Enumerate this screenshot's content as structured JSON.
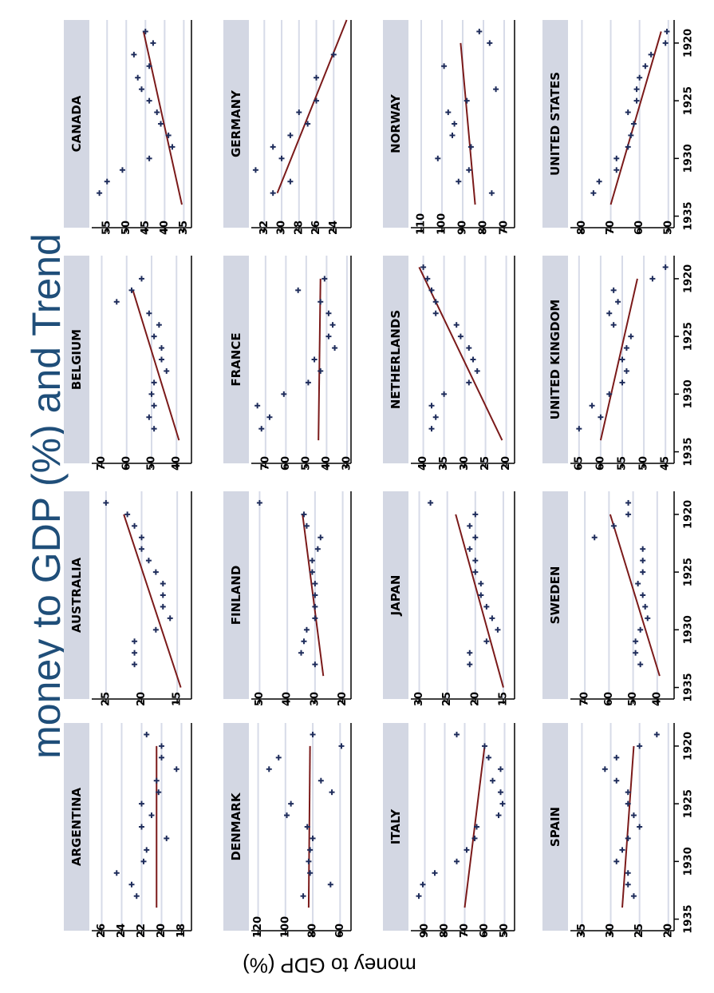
{
  "figure": {
    "title": "money to GDP (%) and Trend",
    "ylabel": "money to GDP (%)",
    "colors": {
      "points": "#1f2d5c",
      "trend": "#7b1a1a",
      "strip": "#d3d7e3",
      "grid": "#d7dbe8"
    }
  },
  "chart_data": [
    {
      "type": "scatter",
      "title": "CANADA",
      "x": [
        1919,
        1920,
        1921,
        1922,
        1923,
        1924,
        1925,
        1926,
        1927,
        1928,
        1929,
        1930,
        1931,
        1932,
        1933
      ],
      "y": [
        45,
        43,
        48,
        44,
        47,
        46,
        44,
        42,
        41,
        39,
        38,
        44,
        51,
        55,
        57
      ],
      "trend": {
        "x": [
          1919,
          1934
        ],
        "y": [
          45.5,
          35.5
        ]
      },
      "xlim": [
        1918,
        1936
      ],
      "ylim": [
        33,
        59
      ],
      "yticks": [
        55,
        50,
        45,
        40,
        35
      ],
      "xticks": []
    },
    {
      "type": "scatter",
      "title": "GERMANY",
      "x": [
        1921,
        1923,
        1925,
        1926,
        1927,
        1928,
        1929,
        1930,
        1931,
        1932,
        1933
      ],
      "y": [
        24,
        26,
        26,
        28,
        27,
        29,
        31,
        30,
        33,
        29,
        31
      ],
      "trend": {
        "x": [
          1918,
          1933
        ],
        "y": [
          22.5,
          30.5
        ]
      },
      "xlim": [
        1918,
        1936
      ],
      "ylim": [
        22,
        33.5
      ],
      "yticks": [
        32,
        30,
        28,
        26,
        24
      ],
      "xticks": []
    },
    {
      "type": "scatter",
      "title": "NORWAY",
      "x": [
        1919,
        1920,
        1922,
        1924,
        1925,
        1926,
        1927,
        1928,
        1929,
        1930,
        1931,
        1932,
        1933
      ],
      "y": [
        82,
        77,
        99,
        74,
        88,
        97,
        94,
        95,
        86,
        102,
        87,
        92,
        76
      ],
      "trend": {
        "x": [
          1920,
          1934
        ],
        "y": [
          91,
          84
        ]
      },
      "xlim": [
        1918,
        1936
      ],
      "ylim": [
        65,
        115
      ],
      "yticks": [
        110,
        100,
        90,
        80,
        70
      ],
      "xticks": []
    },
    {
      "type": "scatter",
      "title": "UNITED STATES",
      "x": [
        1919,
        1920,
        1921,
        1922,
        1923,
        1924,
        1925,
        1926,
        1927,
        1928,
        1929,
        1930,
        1931,
        1932,
        1933
      ],
      "y": [
        50.5,
        51,
        56,
        58,
        60,
        61,
        61,
        64,
        62,
        63,
        64,
        68,
        68,
        74,
        76
      ],
      "trend": {
        "x": [
          1919,
          1934
        ],
        "y": [
          52.5,
          70
        ]
      },
      "xlim": [
        1918,
        1936
      ],
      "ylim": [
        48,
        84
      ],
      "yticks": [
        80,
        70,
        60,
        50
      ],
      "xticks": [
        1920,
        1925,
        1930,
        1935
      ]
    },
    {
      "type": "scatter",
      "title": "BELGIUM",
      "x": [
        1920,
        1921,
        1922,
        1923,
        1924,
        1925,
        1926,
        1927,
        1928,
        1929,
        1930,
        1931,
        1932,
        1933
      ],
      "y": [
        54,
        58,
        64,
        51,
        47,
        49,
        46,
        46,
        44,
        49,
        50,
        49,
        51,
        49
      ],
      "trend": {
        "x": [
          1921,
          1934
        ],
        "y": [
          57.5,
          39
        ]
      },
      "xlim": [
        1918,
        1936
      ],
      "ylim": [
        34,
        74
      ],
      "yticks": [
        70,
        60,
        50,
        40
      ],
      "xticks": []
    },
    {
      "type": "scatter",
      "title": "FRANCE",
      "x": [
        1920,
        1921,
        1922,
        1923,
        1924,
        1925,
        1926,
        1927,
        1928,
        1929,
        1930,
        1931,
        1932,
        1933
      ],
      "y": [
        41,
        54,
        43,
        39,
        37,
        39,
        36,
        46,
        43,
        49,
        61,
        74,
        68,
        72
      ],
      "trend": {
        "x": [
          1920,
          1934
        ],
        "y": [
          43,
          44
        ]
      },
      "xlim": [
        1918,
        1936
      ],
      "ylim": [
        28,
        77
      ],
      "yticks": [
        70,
        60,
        50,
        40,
        30
      ],
      "xticks": []
    },
    {
      "type": "scatter",
      "title": "NETHERLANDS",
      "x": [
        1919,
        1920,
        1921,
        1922,
        1923,
        1924,
        1925,
        1926,
        1927,
        1928,
        1929,
        1930,
        1931,
        1932,
        1933
      ],
      "y": [
        40,
        39,
        38,
        37,
        37,
        32,
        31,
        29,
        28,
        27,
        29,
        35,
        38,
        37,
        38
      ],
      "trend": {
        "x": [
          1919,
          1934
        ],
        "y": [
          41,
          21
        ]
      },
      "xlim": [
        1918,
        1936
      ],
      "ylim": [
        18,
        43
      ],
      "yticks": [
        40,
        35,
        30,
        25,
        20
      ],
      "xticks": []
    },
    {
      "type": "scatter",
      "title": "UNITED KINGDOM",
      "x": [
        1919,
        1920,
        1921,
        1922,
        1923,
        1924,
        1925,
        1926,
        1927,
        1928,
        1929,
        1930,
        1931,
        1932,
        1933
      ],
      "y": [
        45,
        48,
        57,
        56,
        58,
        57,
        53,
        54,
        55,
        54,
        55,
        58,
        62,
        60,
        65
      ],
      "trend": {
        "x": [
          1920,
          1934
        ],
        "y": [
          51.5,
          60
        ]
      },
      "xlim": [
        1918,
        1936
      ],
      "ylim": [
        43,
        67
      ],
      "yticks": [
        65,
        60,
        55,
        50,
        45
      ],
      "xticks": [
        1920,
        1925,
        1930,
        1935
      ]
    },
    {
      "type": "scatter",
      "title": "AUSTRALIA",
      "x": [
        1919,
        1920,
        1921,
        1922,
        1923,
        1924,
        1925,
        1926,
        1927,
        1928,
        1929,
        1930,
        1931,
        1932,
        1933
      ],
      "y": [
        25,
        22,
        21,
        20,
        20,
        19,
        18,
        17,
        17,
        17,
        16,
        18,
        21,
        21,
        21
      ],
      "trend": {
        "x": [
          1920,
          1935
        ],
        "y": [
          22.5,
          14.5
        ]
      },
      "xlim": [
        1918,
        1936
      ],
      "ylim": [
        13,
        27
      ],
      "yticks": [
        25,
        20,
        15
      ],
      "xticks": []
    },
    {
      "type": "scatter",
      "title": "FINLAND",
      "x": [
        1919,
        1920,
        1921,
        1922,
        1923,
        1924,
        1925,
        1926,
        1927,
        1928,
        1929,
        1930,
        1931,
        1932,
        1933
      ],
      "y": [
        50,
        34,
        33,
        28,
        29,
        31,
        31,
        30,
        30,
        30,
        30,
        33,
        34,
        35,
        30
      ],
      "trend": {
        "x": [
          1920,
          1934
        ],
        "y": [
          34.5,
          27
        ]
      },
      "xlim": [
        1918,
        1936
      ],
      "ylim": [
        17,
        53
      ],
      "yticks": [
        50,
        40,
        30,
        20
      ],
      "xticks": []
    },
    {
      "type": "scatter",
      "title": "JAPAN",
      "x": [
        1919,
        1920,
        1921,
        1922,
        1923,
        1924,
        1925,
        1926,
        1927,
        1928,
        1929,
        1930,
        1931,
        1932,
        1933
      ],
      "y": [
        28,
        20,
        21,
        20,
        21,
        20,
        20,
        19,
        19,
        18,
        17,
        16,
        18,
        21,
        21
      ],
      "trend": {
        "x": [
          1920,
          1935
        ],
        "y": [
          23.5,
          15
        ]
      },
      "xlim": [
        1918,
        1936
      ],
      "ylim": [
        13,
        31.5
      ],
      "yticks": [
        30,
        25,
        20,
        15
      ],
      "xticks": []
    },
    {
      "type": "scatter",
      "title": "SWEDEN",
      "x": [
        1919,
        1920,
        1921,
        1922,
        1923,
        1924,
        1925,
        1926,
        1927,
        1928,
        1929,
        1930,
        1931,
        1932,
        1933
      ],
      "y": [
        52,
        52,
        58,
        66,
        46,
        46,
        46,
        48,
        46,
        45,
        44,
        47,
        49,
        49,
        47
      ],
      "trend": {
        "x": [
          1920,
          1934
        ],
        "y": [
          59.5,
          39
        ]
      },
      "xlim": [
        1918,
        1936
      ],
      "ylim": [
        33,
        76
      ],
      "yticks": [
        70,
        60,
        50,
        40
      ],
      "xticks": [
        1920,
        1925,
        1930,
        1935
      ]
    },
    {
      "type": "scatter",
      "title": "ARGENTINA",
      "x": [
        1919,
        1920,
        1921,
        1922,
        1923,
        1924,
        1925,
        1926,
        1927,
        1928,
        1929,
        1930,
        1931,
        1932,
        1933
      ],
      "y": [
        21.5,
        20,
        20,
        18.5,
        20.5,
        20.3,
        22,
        21,
        22,
        19.5,
        21.5,
        21.8,
        24.5,
        23,
        22.5
      ],
      "trend": {
        "x": [
          1920,
          1934
        ],
        "y": [
          20.5,
          20.5
        ]
      },
      "xlim": [
        1918,
        1936
      ],
      "ylim": [
        17,
        27
      ],
      "yticks": [
        26,
        24,
        22,
        20,
        18
      ],
      "xticks": []
    },
    {
      "type": "scatter",
      "title": "DENMARK",
      "x": [
        1919,
        1920,
        1921,
        1922,
        1923,
        1924,
        1925,
        1926,
        1927,
        1928,
        1929,
        1930,
        1931,
        1932,
        1933
      ],
      "y": [
        80,
        59,
        105,
        112,
        74,
        66,
        96,
        99,
        84,
        80,
        82,
        83,
        82,
        67,
        87
      ],
      "trend": {
        "x": [
          1920,
          1934
        ],
        "y": [
          82,
          83
        ]
      },
      "xlim": [
        1918,
        1936
      ],
      "ylim": [
        52,
        125
      ],
      "yticks": [
        120,
        100,
        80,
        60
      ],
      "xticks": []
    },
    {
      "type": "scatter",
      "title": "ITALY",
      "x": [
        1919,
        1920,
        1921,
        1922,
        1923,
        1924,
        1925,
        1926,
        1927,
        1928,
        1929,
        1930,
        1931,
        1932,
        1933
      ],
      "y": [
        74,
        60,
        58,
        52,
        56,
        52,
        51,
        53,
        64,
        65,
        69,
        74,
        85,
        91,
        93
      ],
      "trend": {
        "x": [
          1920,
          1934
        ],
        "y": [
          60,
          70
        ]
      },
      "xlim": [
        1918,
        1936
      ],
      "ylim": [
        45,
        97
      ],
      "yticks": [
        90,
        80,
        70,
        60,
        50
      ],
      "xticks": []
    },
    {
      "type": "scatter",
      "title": "SPAIN",
      "x": [
        1919,
        1920,
        1921,
        1922,
        1923,
        1924,
        1925,
        1926,
        1927,
        1928,
        1929,
        1930,
        1931,
        1932,
        1933
      ],
      "y": [
        22,
        25,
        29,
        31,
        29,
        27,
        27,
        26,
        25,
        27,
        28,
        29,
        27,
        27,
        26
      ],
      "trend": {
        "x": [
          1920,
          1934
        ],
        "y": [
          26,
          28
        ]
      },
      "xlim": [
        1918,
        1936
      ],
      "ylim": [
        19,
        37
      ],
      "yticks": [
        35,
        30,
        25,
        20
      ],
      "xticks": [
        1920,
        1925,
        1930,
        1935
      ]
    }
  ]
}
